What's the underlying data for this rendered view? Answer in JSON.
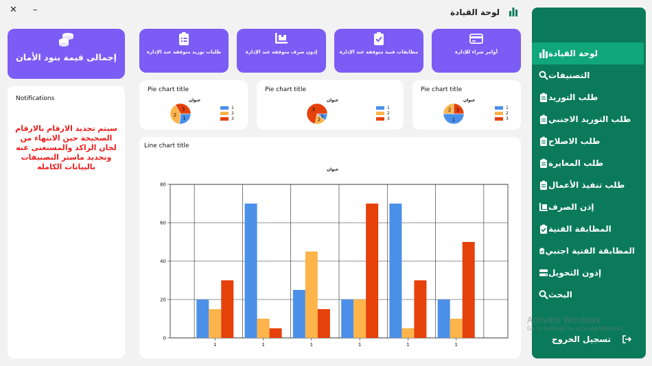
{
  "window": {
    "close_label": "✕",
    "minimize_label": "–",
    "title": "لوحة القيادة"
  },
  "sidebar": {
    "items": [
      {
        "label": "لوحة القيادة",
        "icon": "bar-chart-icon",
        "active": true
      },
      {
        "label": "التصنيفات",
        "icon": "search-icon"
      },
      {
        "label": "طلب التوريد",
        "icon": "clipboard-icon"
      },
      {
        "label": "طلب التوريد الاجنبي",
        "icon": "clipboard-icon"
      },
      {
        "label": "طلب الاصلاح",
        "icon": "clipboard-icon"
      },
      {
        "label": "طلب المعايرة",
        "icon": "clipboard-icon"
      },
      {
        "label": "طلب تنفيذ الأعمال",
        "icon": "clipboard-icon"
      },
      {
        "label": "إذن الصرف",
        "icon": "dolly-icon"
      },
      {
        "label": "المطابقة الفنية",
        "icon": "clipboard-check-icon"
      },
      {
        "label": "المطابقة الفنية اجنبي",
        "icon": "clipboard-check-icon"
      },
      {
        "label": "إذون التحويل",
        "icon": "transfer-icon"
      },
      {
        "label": "البحث",
        "icon": "search-icon"
      }
    ],
    "logout_label": "تسجيل الخروج",
    "accent": "#0b7a5a",
    "active_color": "#10a77b"
  },
  "watermark": {
    "line1": "Activate Windows",
    "line2": "Go to Settings to activate Windows."
  },
  "summary": {
    "big_card_label": "إجمالى قيمة بنود الأمان",
    "cards": [
      {
        "label": "أوامر شراء للإدارة",
        "icon": "credit-card-icon"
      },
      {
        "label": "مطابقات فنية متوقفة عند الإدارة",
        "icon": "clipboard-check-icon"
      },
      {
        "label": "إذون صرف متوقفة عند الإدارة",
        "icon": "dolly-icon"
      },
      {
        "label": "طلبات توريد متوقفة عند الإدارة",
        "icon": "clipboard-list-icon"
      }
    ],
    "card_color": "#7b5cf5"
  },
  "notifications": {
    "title": "Notifications",
    "message": "سيتم تجديد الارقام بالارقام الصحيحة حين الانتهاء من لجان الراكد والمستغنى عنه وتجديد ماستر التصنيفات بالبيانات الكامله"
  },
  "colors": {
    "blue": "#4a90e8",
    "orange": "#fdb44b",
    "red": "#e5410b"
  },
  "chart_data": [
    {
      "type": "pie",
      "title": "Pie chart title",
      "subtitle": "عنوان",
      "legend": [
        "1",
        "2",
        "3"
      ],
      "slices": [
        {
          "name": "1",
          "value": 4
        },
        {
          "name": "2",
          "value": 6
        },
        {
          "name": "3",
          "value": 5
        }
      ]
    },
    {
      "type": "pie",
      "title": "Pie chart title",
      "subtitle": "عنوان",
      "legend": [
        "1",
        "2",
        "3"
      ],
      "slices": [
        {
          "name": "1",
          "value": 2
        },
        {
          "name": "2",
          "value": 3
        },
        {
          "name": "3",
          "value": 13
        }
      ]
    },
    {
      "type": "pie",
      "title": "Pie chart title",
      "subtitle": "عنوان",
      "legend": [
        "1",
        "2",
        "3"
      ],
      "slices": [
        {
          "name": "1",
          "value": 6
        },
        {
          "name": "2",
          "value": 3
        },
        {
          "name": "3",
          "value": 3
        }
      ]
    },
    {
      "type": "bar",
      "title": "Line chart title",
      "subtitle": "عنوان",
      "categories": [
        "1",
        "1",
        "1",
        "1",
        "1",
        "1"
      ],
      "series": [
        {
          "values": [
            20,
            70,
            25,
            20,
            70,
            20
          ]
        },
        {
          "values": [
            15,
            10,
            45,
            20,
            5,
            10
          ]
        },
        {
          "values": [
            30,
            5,
            15,
            70,
            30,
            50
          ]
        }
      ],
      "ylim": [
        0,
        80
      ],
      "yticks": [
        0,
        20,
        40,
        60,
        80
      ],
      "grid": true
    }
  ]
}
